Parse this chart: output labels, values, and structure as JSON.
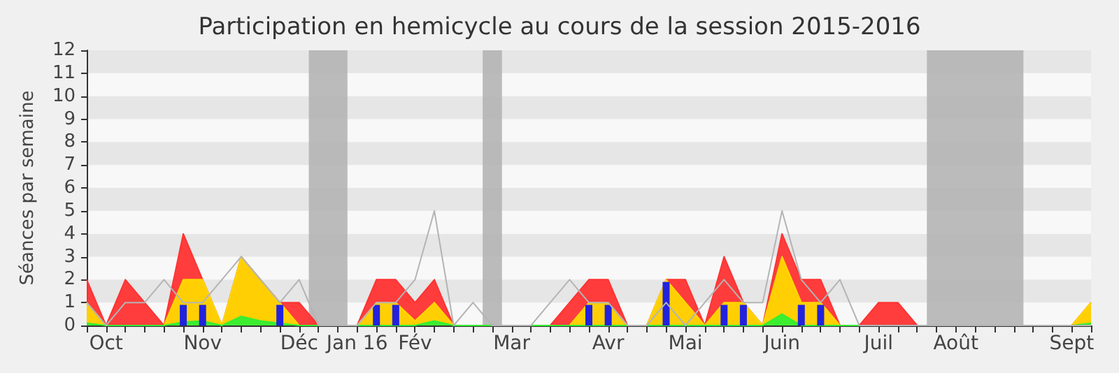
{
  "chart_data": {
    "type": "area",
    "title": "Participation en hemicycle au cours de la session 2015-2016",
    "ylabel": "Séances par semaine",
    "categories": [
      null,
      "Oct",
      null,
      null,
      null,
      null,
      "Nov",
      null,
      null,
      null,
      null,
      "Déc",
      null,
      null,
      "Jan 16",
      null,
      null,
      "Fév",
      null,
      null,
      null,
      null,
      "Mar",
      null,
      null,
      null,
      null,
      "Avr",
      null,
      null,
      null,
      "Mai",
      null,
      null,
      null,
      null,
      "Juin",
      null,
      null,
      null,
      null,
      "Juil",
      null,
      null,
      null,
      "Août",
      null,
      null,
      null,
      null,
      null,
      "Sept",
      null
    ],
    "series": [
      {
        "color": "#ff3333",
        "values": [
          2,
          0,
          2,
          1,
          0,
          4,
          2,
          0,
          3,
          2,
          1,
          1,
          0,
          0,
          0,
          2,
          2,
          1,
          2,
          0,
          0,
          0,
          0,
          0,
          0,
          1,
          2,
          2,
          0,
          0,
          2,
          2,
          0,
          3,
          1,
          0,
          4,
          2,
          2,
          0,
          0,
          1,
          1,
          0,
          0,
          0,
          0,
          0,
          0,
          0,
          0,
          0,
          1
        ]
      },
      {
        "color": "#ffd700",
        "values": [
          1,
          0,
          0,
          0,
          0,
          2,
          2,
          0,
          3,
          2,
          1,
          0,
          0,
          0,
          0,
          1,
          1,
          0.2,
          1,
          0,
          0,
          0,
          0,
          0,
          0,
          0,
          1,
          1,
          0,
          0,
          2,
          1,
          0,
          1,
          1,
          0,
          3,
          1,
          1,
          0,
          0,
          0,
          0,
          0,
          0,
          0,
          0,
          0,
          0,
          0,
          0,
          0,
          1
        ]
      },
      {
        "color": "#33ee33",
        "values": [
          0.1,
          0,
          0,
          0,
          0,
          0.15,
          0.2,
          0,
          0.4,
          0.2,
          0.1,
          0,
          0,
          0,
          0,
          0,
          0,
          0,
          0.2,
          0,
          0,
          0,
          0,
          0,
          0,
          0,
          0,
          0,
          0,
          0,
          0,
          0,
          0,
          0,
          0,
          0,
          0.5,
          0,
          0,
          0,
          0,
          0,
          0,
          0,
          0,
          0,
          0,
          0,
          0,
          0,
          0,
          0,
          0.1
        ]
      },
      {
        "type": "line",
        "color": "#b4b4b4",
        "values": [
          1,
          0,
          1,
          1,
          2,
          1,
          1,
          2,
          3,
          2,
          1,
          2,
          0,
          0,
          0,
          1,
          1,
          2,
          5,
          0,
          1,
          0,
          0,
          0,
          1,
          2,
          1,
          1,
          0,
          0,
          1,
          0,
          1,
          2,
          1,
          1,
          5,
          2,
          1,
          2,
          0,
          0,
          0,
          0,
          0,
          0,
          0,
          0,
          0,
          0,
          0,
          0,
          0
        ]
      },
      {
        "type": "bar",
        "color": "#2222dd",
        "values": [
          null,
          null,
          null,
          null,
          null,
          0.9,
          0.9,
          null,
          null,
          null,
          0.9,
          null,
          null,
          null,
          null,
          0.9,
          0.9,
          null,
          null,
          null,
          null,
          null,
          null,
          null,
          null,
          null,
          0.9,
          0.9,
          null,
          null,
          1.9,
          null,
          null,
          0.9,
          0.9,
          null,
          null,
          0.9,
          0.9,
          null,
          null,
          null,
          null,
          null,
          null,
          null,
          null,
          null,
          null,
          null,
          null,
          null,
          null
        ]
      }
    ],
    "ylim": [
      0,
      12
    ],
    "yticks": [
      0,
      1,
      2,
      3,
      4,
      5,
      6,
      7,
      8,
      9,
      10,
      11,
      12
    ]
  }
}
